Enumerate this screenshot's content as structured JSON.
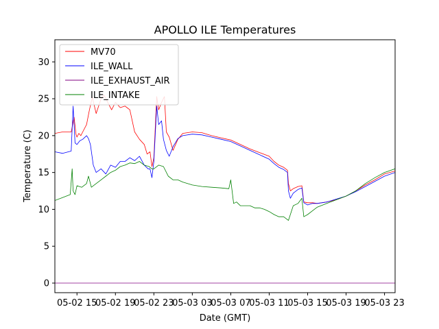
{
  "chart_data": {
    "type": "line",
    "title": "APOLLO ILE Temperatures",
    "xlabel": "Date (GMT)",
    "ylabel": "Temperature (C)",
    "xlim": [
      11.7,
      47.1
    ],
    "ylim": [
      -1.3,
      33
    ],
    "yticks": [
      0,
      5,
      10,
      15,
      20,
      25,
      30
    ],
    "xticks": [
      {
        "hour": 14,
        "label": "05-02 15"
      },
      {
        "hour": 18,
        "label": "05-02 19"
      },
      {
        "hour": 22,
        "label": "05-02 23"
      },
      {
        "hour": 26,
        "label": "05-03 03"
      },
      {
        "hour": 30,
        "label": "05-03 07"
      },
      {
        "hour": 34,
        "label": "05-03 11"
      },
      {
        "hour": 38,
        "label": "05-03 15"
      },
      {
        "hour": 42,
        "label": "05-03 19"
      },
      {
        "hour": 46,
        "label": "05-03 23"
      }
    ],
    "legend_position": "top-left",
    "series": [
      {
        "name": "MV70",
        "color": "#ff0000",
        "x": [
          11.7,
          12.5,
          13.4,
          13.7,
          13.9,
          14.0,
          14.2,
          14.4,
          14.6,
          15.0,
          15.3,
          15.6,
          16.0,
          16.5,
          16.8,
          17.2,
          17.6,
          18.0,
          18.5,
          19.0,
          19.2,
          19.5,
          20.0,
          20.5,
          21.0,
          21.3,
          21.6,
          21.8,
          22.0,
          22.3,
          22.5,
          22.8,
          23.1,
          23.3,
          23.6,
          24.0,
          24.5,
          25.0,
          26.0,
          27.0,
          28.0,
          29.0,
          30.0,
          31.0,
          32.0,
          33.0,
          34.0,
          34.5,
          35.0,
          35.5,
          35.9,
          36.0,
          36.2,
          36.5,
          37.0,
          37.4,
          37.6,
          38.0,
          38.5,
          39.0,
          40.0,
          41.0,
          42.0,
          43.0,
          44.0,
          45.0,
          46.0,
          47.1
        ],
        "y": [
          20.3,
          20.5,
          20.5,
          22.5,
          20.2,
          19.8,
          20.3,
          20.0,
          20.5,
          21.5,
          23.5,
          25.2,
          23.0,
          25.0,
          25.5,
          24.5,
          23.5,
          24.5,
          23.8,
          24.0,
          23.8,
          23.5,
          20.5,
          19.5,
          18.8,
          17.5,
          17.8,
          15.8,
          17.0,
          25.3,
          23.5,
          24.5,
          25.3,
          20.5,
          19.8,
          18.0,
          19.5,
          20.3,
          20.5,
          20.4,
          20.0,
          19.7,
          19.4,
          18.8,
          18.2,
          17.7,
          17.2,
          16.5,
          16.0,
          15.7,
          15.3,
          13.5,
          12.5,
          12.8,
          13.1,
          13.2,
          11.0,
          10.9,
          10.9,
          10.8,
          11.0,
          11.3,
          11.8,
          12.5,
          13.3,
          14.0,
          14.8,
          15.2
        ]
      },
      {
        "name": "ILE_WALL",
        "color": "#0000ff",
        "x": [
          11.7,
          12.5,
          13.4,
          13.6,
          13.8,
          14.0,
          14.3,
          14.6,
          15.0,
          15.2,
          15.4,
          15.7,
          16.0,
          16.5,
          17.0,
          17.5,
          18.0,
          18.5,
          19.0,
          19.5,
          20.0,
          20.5,
          21.0,
          21.4,
          21.6,
          21.8,
          22.0,
          22.3,
          22.5,
          22.8,
          23.0,
          23.3,
          23.6,
          24.0,
          24.5,
          25.0,
          26.0,
          27.0,
          28.0,
          29.0,
          30.0,
          31.0,
          32.0,
          33.0,
          34.0,
          34.5,
          35.0,
          35.5,
          35.9,
          36.0,
          36.2,
          36.5,
          37.0,
          37.4,
          37.6,
          38.0,
          38.5,
          39.0,
          40.0,
          41.0,
          42.0,
          43.0,
          44.0,
          45.0,
          46.0,
          47.1
        ],
        "y": [
          17.8,
          17.6,
          17.9,
          24.0,
          19.0,
          18.8,
          19.3,
          19.5,
          20.0,
          19.6,
          18.8,
          16.0,
          15.0,
          15.5,
          14.8,
          16.0,
          15.7,
          16.5,
          16.5,
          17.0,
          16.6,
          17.2,
          16.0,
          15.5,
          15.5,
          14.3,
          16.5,
          24.0,
          21.5,
          22.0,
          19.5,
          18.0,
          17.2,
          18.5,
          19.6,
          20.0,
          20.2,
          20.1,
          19.8,
          19.5,
          19.2,
          18.6,
          18.0,
          17.4,
          16.8,
          16.2,
          15.7,
          15.4,
          15.0,
          12.5,
          11.5,
          12.2,
          12.7,
          12.9,
          10.9,
          10.6,
          10.8,
          10.8,
          11.0,
          11.4,
          11.8,
          12.4,
          13.1,
          13.8,
          14.5,
          15.0
        ]
      },
      {
        "name": "ILE_EXHAUST_AIR",
        "color": "#800080",
        "x": [
          11.7,
          47.1
        ],
        "y": [
          0,
          0
        ]
      },
      {
        "name": "ILE_INTAKE",
        "color": "#008000",
        "x": [
          11.7,
          12.5,
          13.3,
          13.5,
          13.6,
          13.8,
          14.0,
          14.5,
          15.0,
          15.2,
          15.5,
          16.0,
          16.5,
          17.0,
          17.5,
          18.0,
          18.5,
          19.0,
          19.5,
          20.0,
          20.5,
          21.0,
          21.5,
          21.8,
          22.0,
          22.5,
          23.0,
          23.5,
          24.0,
          24.5,
          25.0,
          26.0,
          27.0,
          28.0,
          29.0,
          29.8,
          30.0,
          30.3,
          30.6,
          31.0,
          32.0,
          32.5,
          33.0,
          33.5,
          34.0,
          34.5,
          35.0,
          35.5,
          36.0,
          36.5,
          37.0,
          37.4,
          37.6,
          38.0,
          38.5,
          39.0,
          40.0,
          41.0,
          42.0,
          43.0,
          44.0,
          45.0,
          46.0,
          47.1
        ],
        "y": [
          11.2,
          11.6,
          12.0,
          15.5,
          12.5,
          12.0,
          13.2,
          13.0,
          13.5,
          14.5,
          13.0,
          13.5,
          14.0,
          14.5,
          15.0,
          15.3,
          15.8,
          16.0,
          16.3,
          16.2,
          16.5,
          16.0,
          15.8,
          15.5,
          15.5,
          16.0,
          15.8,
          14.5,
          14.0,
          14.0,
          13.7,
          13.3,
          13.1,
          13.0,
          12.9,
          12.8,
          14.0,
          10.8,
          11.0,
          10.5,
          10.5,
          10.2,
          10.2,
          10.0,
          9.7,
          9.3,
          9.0,
          9.0,
          8.5,
          10.5,
          10.8,
          11.5,
          9.0,
          9.3,
          9.8,
          10.3,
          10.8,
          11.3,
          11.8,
          12.5,
          13.5,
          14.3,
          15.0,
          15.5
        ]
      }
    ]
  }
}
